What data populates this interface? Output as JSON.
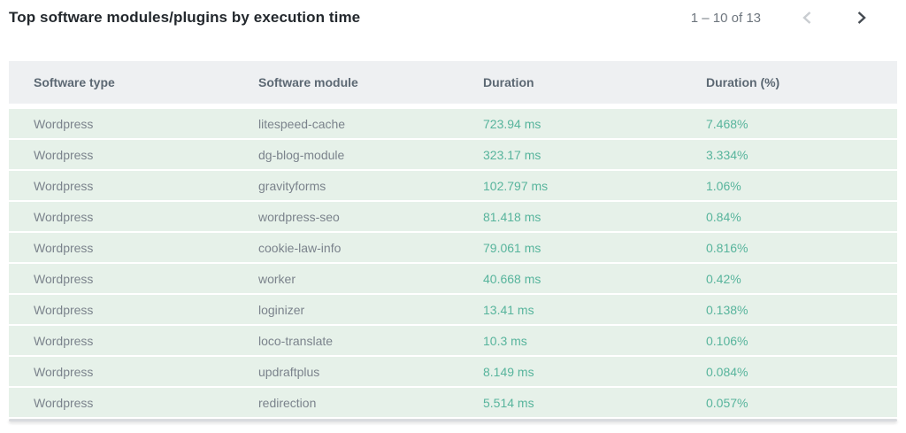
{
  "header": {
    "title": "Top software modules/plugins by execution time",
    "pagination": {
      "range_label": "1 – 10 of 13",
      "prev_icon": "chevron-left-icon",
      "next_icon": "chevron-right-icon",
      "prev_enabled": false,
      "next_enabled": true
    }
  },
  "table": {
    "columns": [
      {
        "label": "Software type"
      },
      {
        "label": "Software module"
      },
      {
        "label": "Duration"
      },
      {
        "label": "Duration (%)"
      }
    ],
    "rows": [
      {
        "software_type": "Wordpress",
        "software_module": "litespeed-cache",
        "duration": "723.94 ms",
        "duration_pct": "7.468%"
      },
      {
        "software_type": "Wordpress",
        "software_module": "dg-blog-module",
        "duration": "323.17 ms",
        "duration_pct": "3.334%"
      },
      {
        "software_type": "Wordpress",
        "software_module": "gravityforms",
        "duration": "102.797 ms",
        "duration_pct": "1.06%"
      },
      {
        "software_type": "Wordpress",
        "software_module": "wordpress-seo",
        "duration": "81.418 ms",
        "duration_pct": "0.84%"
      },
      {
        "software_type": "Wordpress",
        "software_module": "cookie-law-info",
        "duration": "79.061 ms",
        "duration_pct": "0.816%"
      },
      {
        "software_type": "Wordpress",
        "software_module": "worker",
        "duration": "40.668 ms",
        "duration_pct": "0.42%"
      },
      {
        "software_type": "Wordpress",
        "software_module": "loginizer",
        "duration": "13.41 ms",
        "duration_pct": "0.138%"
      },
      {
        "software_type": "Wordpress",
        "software_module": "loco-translate",
        "duration": "10.3 ms",
        "duration_pct": "0.106%"
      },
      {
        "software_type": "Wordpress",
        "software_module": "updraftplus",
        "duration": "8.149 ms",
        "duration_pct": "0.084%"
      },
      {
        "software_type": "Wordpress",
        "software_module": "redirection",
        "duration": "5.514 ms",
        "duration_pct": "0.057%"
      }
    ]
  },
  "colors": {
    "accent_teal": "#57b49c",
    "row_bg": "#e6f1e9",
    "header_row_bg": "#eef0f2",
    "title_text": "#23282d",
    "header_text": "#5c6873",
    "muted_text": "#7b838c",
    "pagination_text": "#6e767e",
    "chevron_disabled": "#c9cdd1",
    "chevron_enabled": "#454b52"
  }
}
